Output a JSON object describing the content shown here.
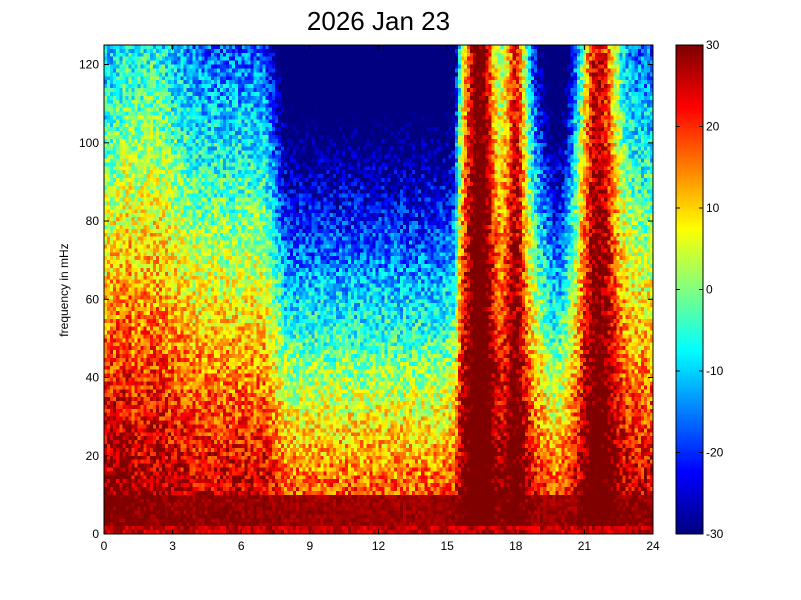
{
  "chart_data": {
    "type": "heatmap",
    "title": "2026 Jan 23",
    "xlabel": "",
    "ylabel": "frequency in mHz",
    "xlim": [
      0,
      24
    ],
    "ylim": [
      0,
      125
    ],
    "x_ticks": [
      0,
      3,
      6,
      9,
      12,
      15,
      18,
      21,
      24
    ],
    "x_tick_labels": [
      "0",
      "3",
      "6",
      "9",
      "12",
      "15",
      "18",
      "21",
      "24"
    ],
    "y_ticks": [
      0,
      20,
      40,
      60,
      80,
      100,
      120
    ],
    "y_tick_labels": [
      "0",
      "20",
      "40",
      "60",
      "80",
      "100",
      "120"
    ],
    "colormap": "jet",
    "clim": [
      -30,
      30
    ],
    "colorbar_ticks": [
      30,
      20,
      10,
      0,
      -10,
      -20,
      -30
    ],
    "colorbar_tick_labels": [
      "30",
      "20",
      "10",
      "0",
      "-10",
      "-20",
      "-30"
    ],
    "grid": false,
    "time_bins": 180,
    "freq_bins": 125,
    "description_profile": {
      "low_freq_band": {
        "freq_max_mHz": 5,
        "value": 30
      },
      "quiet_periods_hours": [
        [
          7.5,
          15.5
        ],
        [
          18.8,
          20.8
        ]
      ],
      "active_bursts_hours": [
        [
          15.6,
          17.2
        ],
        [
          17.6,
          18.5
        ],
        [
          20.8,
          22.5
        ]
      ]
    }
  }
}
